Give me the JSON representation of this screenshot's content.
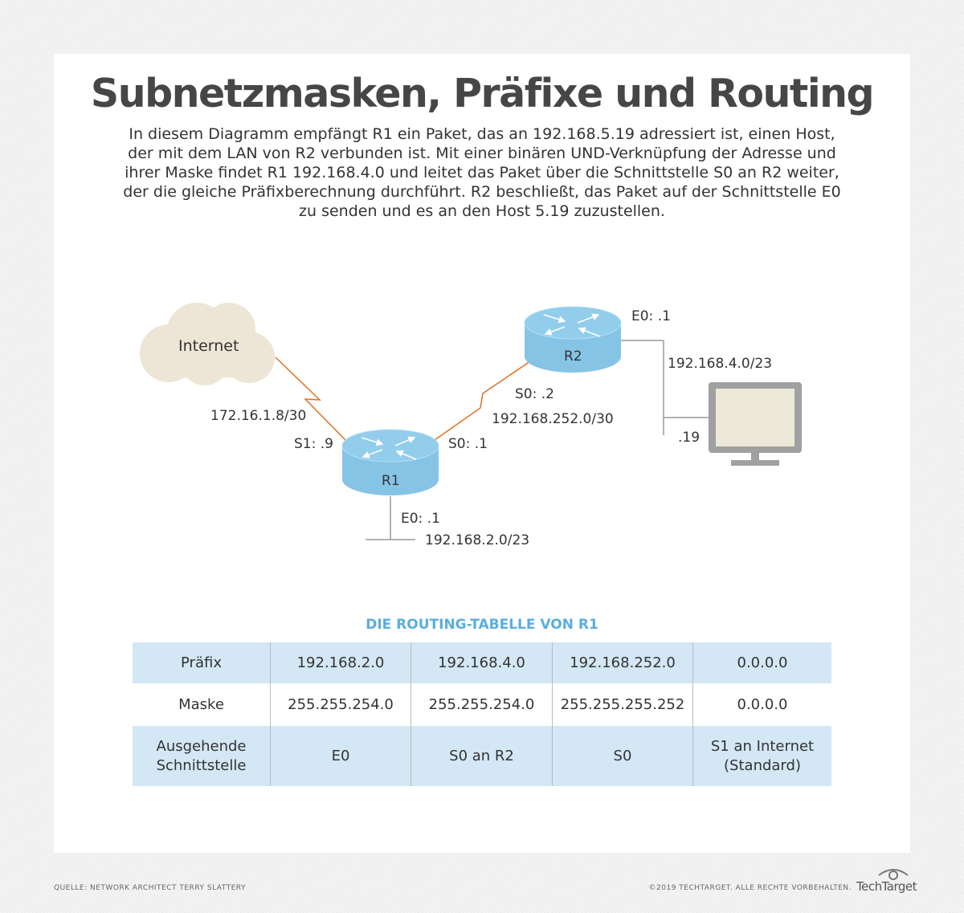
{
  "title": "Subnetzmasken, Präfixe und Routing",
  "description": "In diesem Diagramm empfängt R1 ein Paket, das an 192.168.5.19 adressiert ist, einen Host, der mit dem LAN von R2 verbunden ist. Mit einer binären UND-Verknüpfung der Adresse und ihrer Maske findet R1 192.168.4.0 und leitet das Paket über die Schnittstelle S0 an R2 weiter, der die gleiche Präfixberechnung durchführt. R2 beschließt, das Paket auf der Schnittstelle E0 zu senden und es an den Host 5.19 zuzustellen.",
  "diagram": {
    "internet": "Internet",
    "r1": "R1",
    "r2": "R2",
    "internet_net": "172.16.1.8/30",
    "r1_s1": "S1: .9",
    "r1_s0": "S0: .1",
    "r2_s0": "S0: .2",
    "wan_net": "192.168.252.0/30",
    "r2_e0": "E0: .1",
    "r2_lan": "192.168.4.0/23",
    "host": ".19",
    "r1_e0": "E0: .1",
    "r1_lan": "192.168.2.0/23"
  },
  "colors": {
    "router": "#86c4e6",
    "link": "#e07020",
    "cloud": "#ede6d6",
    "accent": "#5aaee0",
    "row": "#d3e7f5"
  },
  "table": {
    "title": "DIE ROUTING-TABELLE VON R1",
    "rows": [
      [
        "Präfix",
        "192.168.2.0",
        "192.168.4.0",
        "192.168.252.0",
        "0.0.0.0"
      ],
      [
        "Maske",
        "255.255.254.0",
        "255.255.254.0",
        "255.255.255.252",
        "0.0.0.0"
      ],
      [
        "Ausgehende Schnittstelle",
        "E0",
        "S0 an R2",
        "S0",
        "S1 an Internet (Standard)"
      ]
    ]
  },
  "footer": {
    "source": "QUELLE: NETWORK ARCHITECT TERRY SLATTERY",
    "copyright": "©2019 TECHTARGET. ALLE RECHTE VORBEHALTEN.",
    "logo": "TechTarget"
  }
}
